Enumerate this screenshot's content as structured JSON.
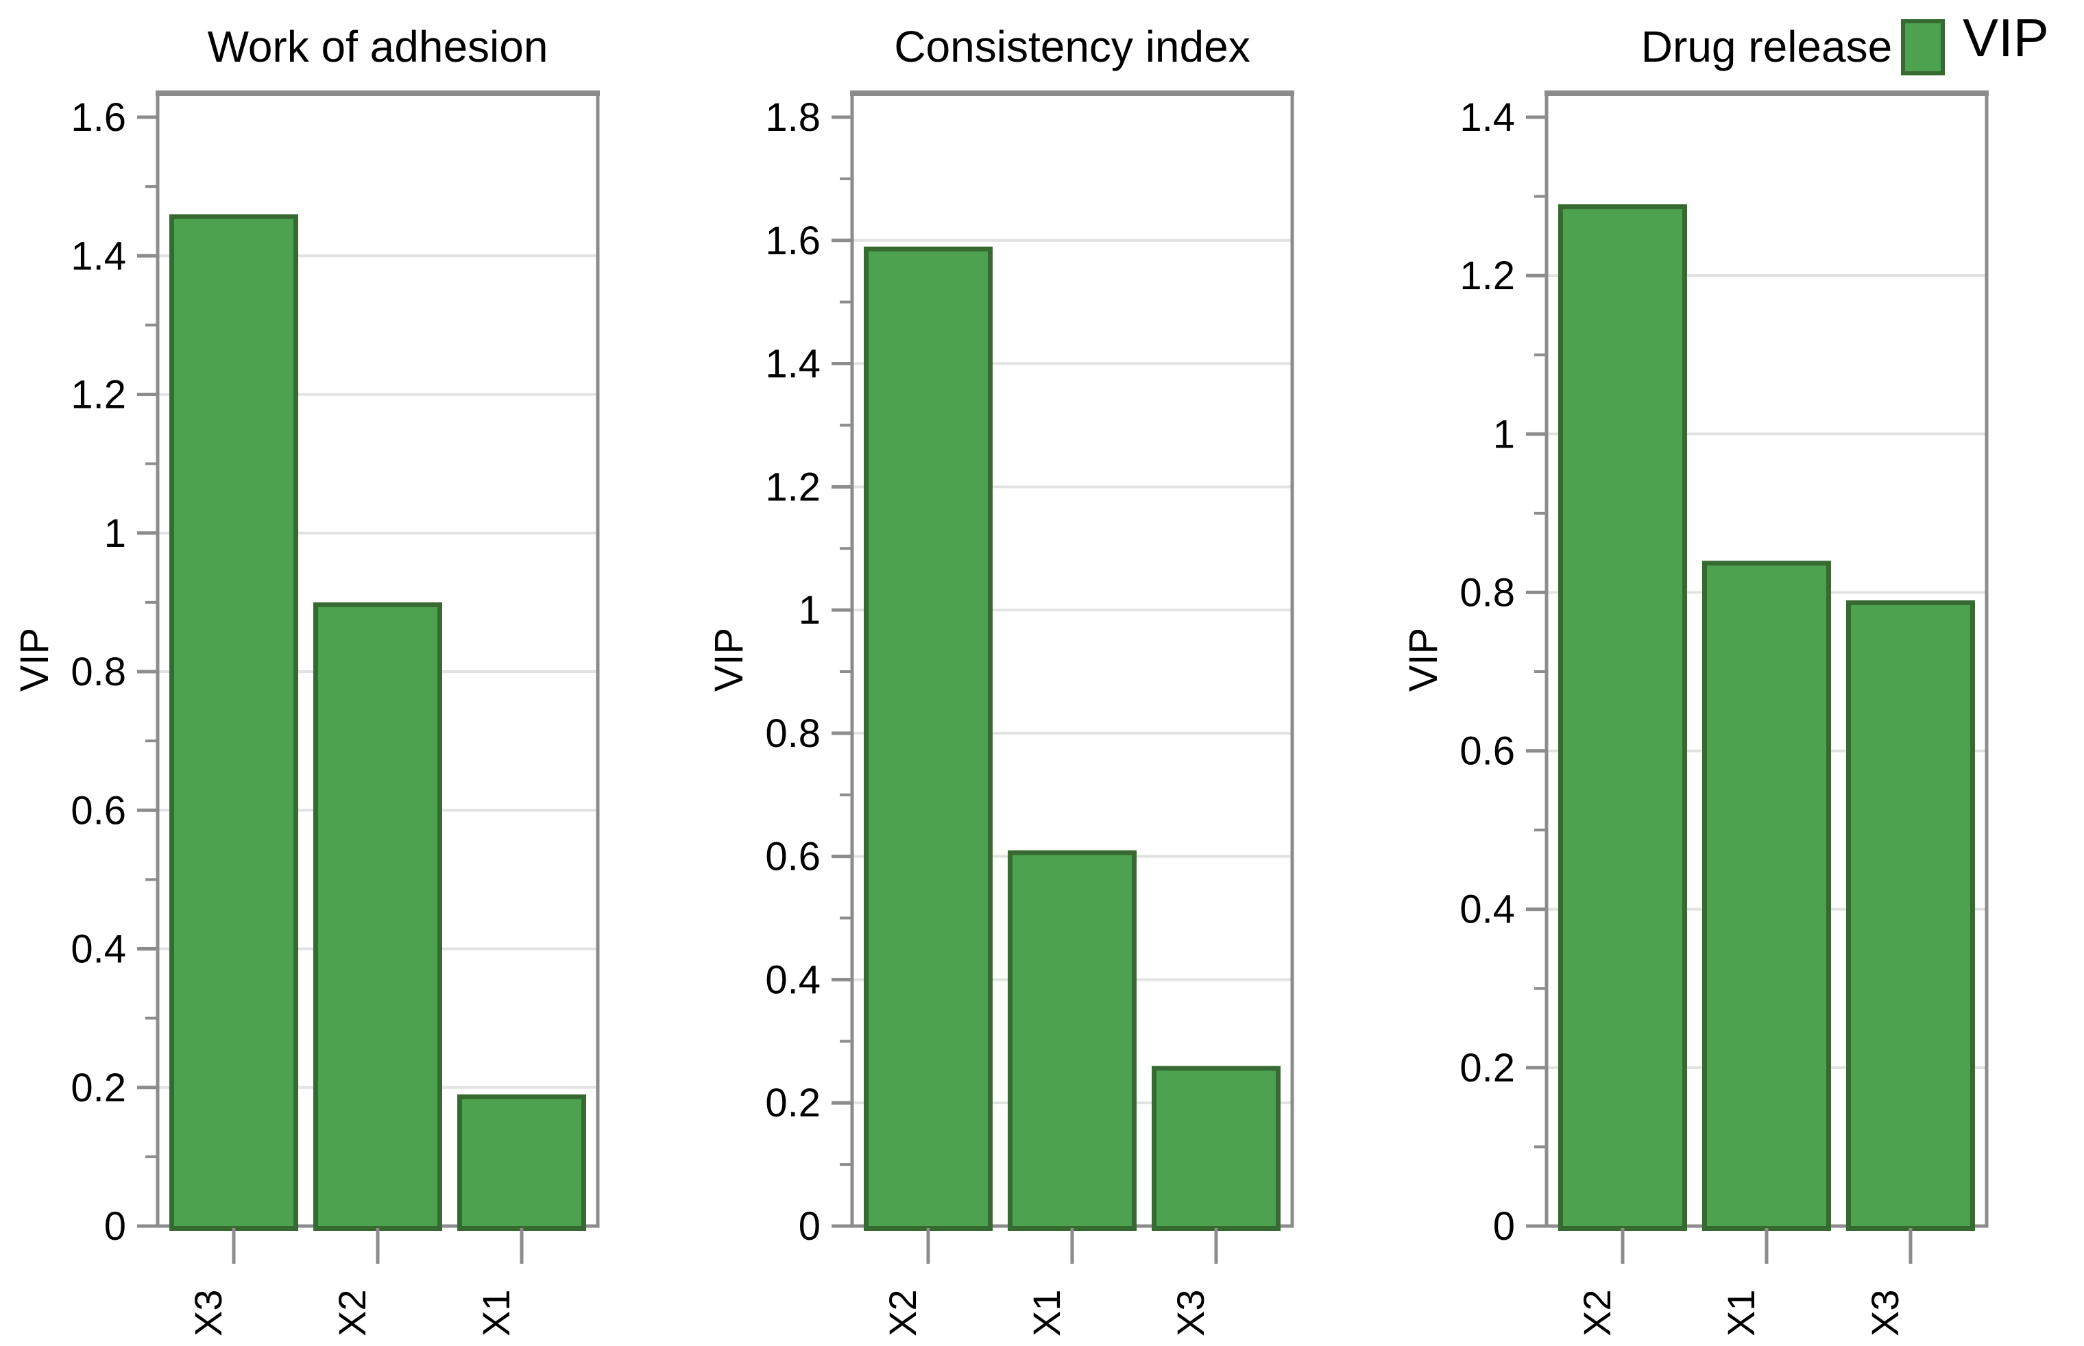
{
  "legend": {
    "label": "VIP",
    "swatch_fill": "#4DA24F",
    "swatch_border": "#366A31"
  },
  "style": {
    "bar_fill": "#4DA24F",
    "bar_border": "#366A31",
    "axis_color": "#8C8C8C",
    "grid_color": "#E2E2E2",
    "text_color": "#000000",
    "background": "#FFFFFF"
  },
  "chart_data": [
    {
      "type": "bar",
      "title": "Work of adhesion",
      "ylabel": "VIP",
      "xlabel": "",
      "categories": [
        "X3",
        "X2",
        "X1"
      ],
      "values": [
        1.46,
        0.9,
        0.19
      ],
      "ylim": [
        0,
        1.6
      ],
      "ytick_step": 0.2,
      "minor_tick_step": 0.1,
      "grid": "horizontal-major",
      "legend_entry": "VIP"
    },
    {
      "type": "bar",
      "title": "Consistency index",
      "ylabel": "VIP",
      "xlabel": "",
      "categories": [
        "X2",
        "X1",
        "X3"
      ],
      "values": [
        1.59,
        0.61,
        0.26
      ],
      "ylim": [
        0,
        1.8
      ],
      "ytick_step": 0.2,
      "minor_tick_step": 0.1,
      "grid": "horizontal-major",
      "legend_entry": "VIP"
    },
    {
      "type": "bar",
      "title": "Drug release",
      "ylabel": "VIP",
      "xlabel": "",
      "categories": [
        "X2",
        "X1",
        "X3"
      ],
      "values": [
        1.29,
        0.84,
        0.79
      ],
      "ylim": [
        0,
        1.4
      ],
      "ytick_step": 0.2,
      "minor_tick_step": 0.1,
      "grid": "horizontal-major",
      "legend_entry": "VIP"
    }
  ],
  "layout_note": {
    "legend_position": "top-right"
  }
}
